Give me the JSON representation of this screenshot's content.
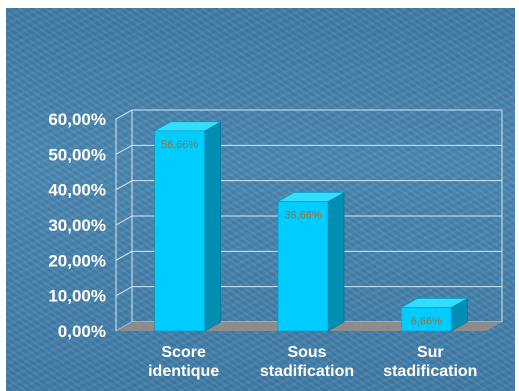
{
  "chart_data": {
    "type": "bar",
    "style": "3d",
    "categories": [
      [
        "Score",
        "identique"
      ],
      [
        "Sous",
        "stadification"
      ],
      [
        "Sur",
        "stadification"
      ]
    ],
    "values": [
      56.66,
      36.66,
      6.66
    ],
    "data_labels": [
      "56,66%",
      "36,66%",
      "6,66%"
    ],
    "y_ticks": [
      "0,00%",
      "10,00%",
      "20,00%",
      "30,00%",
      "40,00%",
      "50,00%",
      "60,00%"
    ],
    "ylim": [
      0,
      60
    ],
    "grid": true,
    "bar_color": "#00ccff",
    "bar_side_color": "#008fb3",
    "bar_top_color": "#33ddff",
    "floor_color": "#8c8c8c"
  }
}
